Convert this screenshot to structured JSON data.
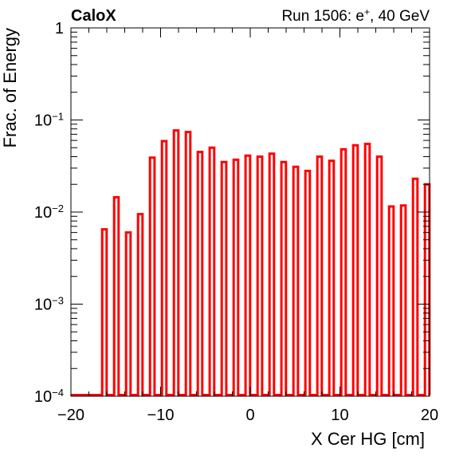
{
  "header": {
    "left_title": "CaloX",
    "right_title": "Run 1506: e",
    "right_sup": "+",
    "right_suffix": ", 40 GeV"
  },
  "chart_data": {
    "type": "bar",
    "style": "step-histogram",
    "color": "#ff0000",
    "xlabel": "X Cer HG [cm]",
    "ylabel": "Frac. of Energy",
    "xlim": [
      -20,
      20
    ],
    "ylim": [
      0.0001,
      1
    ],
    "yscale": "log",
    "grid": false,
    "x_ticks": [
      {
        "value": -20,
        "label": "−20"
      },
      {
        "value": -10,
        "label": "−10"
      },
      {
        "value": 0,
        "label": "0"
      },
      {
        "value": 10,
        "label": "10"
      },
      {
        "value": 20,
        "label": "20"
      }
    ],
    "y_ticks": [
      {
        "value": 0.0001,
        "base": "10",
        "exp": "−4"
      },
      {
        "value": 0.001,
        "base": "10",
        "exp": "−3"
      },
      {
        "value": 0.01,
        "base": "10",
        "exp": "−2"
      },
      {
        "value": 0.1,
        "base": "10",
        "exp": "−1"
      },
      {
        "value": 1,
        "base": "1",
        "exp": ""
      }
    ],
    "bin_width": 0.5,
    "bars": [
      {
        "x": -16.27,
        "y": 0.0065
      },
      {
        "x": -14.93,
        "y": 0.0145
      },
      {
        "x": -13.6,
        "y": 0.006
      },
      {
        "x": -12.27,
        "y": 0.0095
      },
      {
        "x": -10.93,
        "y": 0.039
      },
      {
        "x": -9.6,
        "y": 0.059
      },
      {
        "x": -8.27,
        "y": 0.077
      },
      {
        "x": -6.93,
        "y": 0.074
      },
      {
        "x": -5.6,
        "y": 0.045
      },
      {
        "x": -4.27,
        "y": 0.05
      },
      {
        "x": -2.93,
        "y": 0.035
      },
      {
        "x": -1.6,
        "y": 0.037
      },
      {
        "x": -0.27,
        "y": 0.041
      },
      {
        "x": 1.07,
        "y": 0.04
      },
      {
        "x": 2.4,
        "y": 0.043
      },
      {
        "x": 3.73,
        "y": 0.035
      },
      {
        "x": 5.07,
        "y": 0.031
      },
      {
        "x": 6.4,
        "y": 0.028
      },
      {
        "x": 7.73,
        "y": 0.04
      },
      {
        "x": 9.07,
        "y": 0.036
      },
      {
        "x": 10.4,
        "y": 0.048
      },
      {
        "x": 11.73,
        "y": 0.053
      },
      {
        "x": 13.07,
        "y": 0.055
      },
      {
        "x": 14.4,
        "y": 0.04
      },
      {
        "x": 15.73,
        "y": 0.0115
      },
      {
        "x": 17.07,
        "y": 0.0118
      },
      {
        "x": 18.4,
        "y": 0.023
      },
      {
        "x": 19.73,
        "y": 0.02
      }
    ]
  }
}
